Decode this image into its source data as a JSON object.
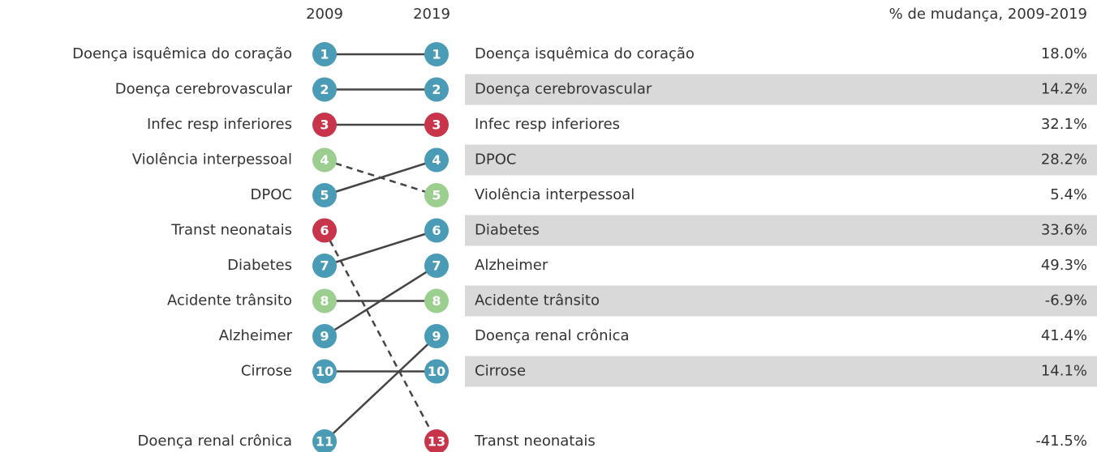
{
  "headers": {
    "start_year": "2009",
    "end_year": "2019",
    "change": "% de mudança, 2009-2019"
  },
  "left": [
    {
      "label": "Doença isquêmica do coração",
      "rank": 1,
      "color": "#4a9bb5"
    },
    {
      "label": "Doença cerebrovascular",
      "rank": 2,
      "color": "#4a9bb5"
    },
    {
      "label": "Infec resp inferiores",
      "rank": 3,
      "color": "#c8354a"
    },
    {
      "label": "Violência interpessoal",
      "rank": 4,
      "color": "#9ccf8f"
    },
    {
      "label": "DPOC",
      "rank": 5,
      "color": "#4a9bb5"
    },
    {
      "label": "Transt neonatais",
      "rank": 6,
      "color": "#c8354a"
    },
    {
      "label": "Diabetes",
      "rank": 7,
      "color": "#4a9bb5"
    },
    {
      "label": "Acidente trânsito",
      "rank": 8,
      "color": "#9ccf8f"
    },
    {
      "label": "Alzheimer",
      "rank": 9,
      "color": "#4a9bb5"
    },
    {
      "label": "Cirrose",
      "rank": 10,
      "color": "#4a9bb5"
    },
    {
      "label": "Doença renal crônica",
      "rank": 11,
      "color": "#4a9bb5"
    }
  ],
  "right": [
    {
      "rank": 1,
      "label": "Doença isquêmica do coração",
      "change": "18.0%"
    },
    {
      "rank": 2,
      "label": "Doença cerebrovascular",
      "change": "14.2%"
    },
    {
      "rank": 3,
      "label": "Infec resp inferiores",
      "change": "32.1%"
    },
    {
      "rank": 4,
      "label": "DPOC",
      "change": "28.2%"
    },
    {
      "rank": 5,
      "label": "Violência interpessoal",
      "change": "5.4%"
    },
    {
      "rank": 6,
      "label": "Diabetes",
      "change": "33.6%"
    },
    {
      "rank": 7,
      "label": "Alzheimer",
      "change": "49.3%"
    },
    {
      "rank": 8,
      "label": "Acidente trânsito",
      "change": "-6.9%"
    },
    {
      "rank": 9,
      "label": "Doença renal crônica",
      "change": "41.4%"
    },
    {
      "rank": 10,
      "label": "Cirrose",
      "change": "14.1%"
    },
    {
      "rank": 13,
      "label": "Transt neonatais",
      "change": "-41.5%"
    }
  ]
}
